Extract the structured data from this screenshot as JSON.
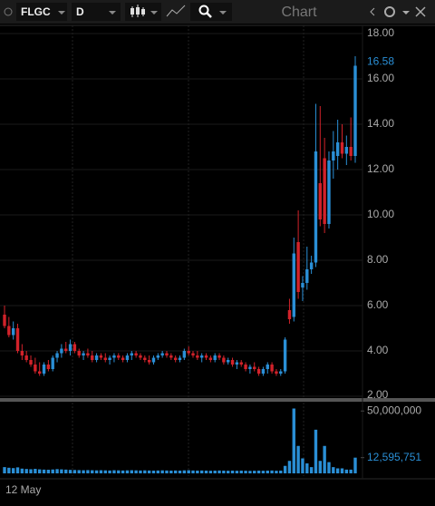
{
  "toolbar": {
    "symbol": "FLGC",
    "interval": "D",
    "title": "Chart"
  },
  "chart_data": {
    "type": "candlestick",
    "open": [
      5.6,
      5.1,
      4.7,
      5.0,
      4.0,
      3.8,
      3.6,
      3.4,
      3.1,
      3.0,
      3.4,
      3.2,
      3.7,
      3.9,
      4.1,
      4.0,
      4.3,
      4.0,
      3.8,
      3.9,
      3.8,
      3.6,
      3.8,
      3.7,
      3.6,
      3.7,
      3.8,
      3.7,
      3.6,
      3.8,
      3.9,
      3.8,
      3.7,
      3.6,
      3.5,
      3.7,
      3.8,
      3.9,
      3.8,
      3.7,
      3.6,
      3.7,
      4.0,
      3.9,
      3.8,
      3.7,
      3.8,
      3.7,
      3.6,
      3.8,
      3.7,
      3.5,
      3.6,
      3.4,
      3.5,
      3.4,
      3.2,
      3.3,
      3.2,
      3.0,
      3.2,
      3.4,
      3.1,
      3.0,
      3.1,
      5.8,
      5.5,
      8.8,
      6.8,
      7.0,
      7.6,
      7.9,
      11.4,
      12.5,
      9.6,
      12.4,
      12.6,
      13.2,
      12.7,
      13.0,
      12.6
    ],
    "high": [
      6.0,
      5.5,
      5.3,
      5.2,
      4.3,
      4.0,
      3.8,
      3.7,
      3.5,
      3.5,
      3.6,
      3.8,
      4.0,
      4.3,
      4.4,
      4.5,
      4.4,
      4.1,
      4.0,
      4.1,
      4.0,
      3.9,
      3.9,
      3.9,
      3.8,
      3.9,
      3.9,
      3.8,
      3.9,
      4.0,
      4.0,
      3.9,
      3.8,
      3.8,
      3.8,
      3.9,
      4.0,
      4.0,
      3.9,
      3.8,
      3.8,
      4.1,
      4.2,
      4.0,
      4.0,
      3.9,
      3.9,
      3.8,
      3.9,
      3.9,
      3.8,
      3.7,
      3.7,
      3.6,
      3.6,
      3.5,
      3.4,
      3.5,
      3.3,
      3.3,
      3.5,
      3.5,
      3.2,
      3.2,
      4.6,
      6.3,
      9.0,
      10.2,
      7.3,
      8.6,
      8.2,
      14.9,
      14.8,
      13.4,
      12.8,
      13.7,
      14.2,
      14.0,
      13.5,
      14.3,
      17.0
    ],
    "low": [
      5.0,
      4.6,
      4.5,
      3.9,
      3.6,
      3.5,
      3.3,
      3.0,
      2.9,
      2.9,
      3.1,
      3.1,
      3.5,
      3.7,
      3.9,
      3.8,
      3.9,
      3.7,
      3.6,
      3.7,
      3.5,
      3.5,
      3.6,
      3.5,
      3.4,
      3.5,
      3.6,
      3.5,
      3.5,
      3.6,
      3.7,
      3.6,
      3.5,
      3.4,
      3.4,
      3.6,
      3.7,
      3.7,
      3.6,
      3.5,
      3.5,
      3.6,
      3.8,
      3.7,
      3.6,
      3.5,
      3.6,
      3.5,
      3.5,
      3.6,
      3.4,
      3.4,
      3.3,
      3.2,
      3.3,
      3.1,
      3.0,
      3.1,
      2.9,
      2.9,
      3.0,
      3.0,
      2.9,
      2.9,
      3.0,
      5.2,
      5.3,
      6.3,
      6.2,
      6.7,
      7.4,
      7.7,
      9.5,
      9.2,
      9.4,
      11.6,
      12.0,
      12.5,
      12.2,
      12.4,
      12.3
    ],
    "close": [
      5.1,
      4.7,
      5.0,
      4.0,
      3.8,
      3.6,
      3.4,
      3.1,
      3.0,
      3.4,
      3.2,
      3.7,
      3.9,
      4.1,
      4.0,
      4.3,
      4.0,
      3.8,
      3.9,
      3.8,
      3.6,
      3.8,
      3.7,
      3.6,
      3.7,
      3.8,
      3.7,
      3.6,
      3.8,
      3.9,
      3.8,
      3.7,
      3.6,
      3.5,
      3.7,
      3.8,
      3.9,
      3.8,
      3.7,
      3.6,
      3.7,
      4.0,
      3.9,
      3.8,
      3.7,
      3.8,
      3.7,
      3.6,
      3.8,
      3.7,
      3.5,
      3.6,
      3.4,
      3.5,
      3.4,
      3.2,
      3.3,
      3.2,
      3.0,
      3.2,
      3.4,
      3.1,
      3.0,
      3.1,
      4.5,
      5.4,
      8.3,
      6.6,
      7.0,
      7.6,
      7.9,
      12.8,
      9.8,
      9.6,
      12.4,
      12.8,
      13.2,
      12.7,
      13.0,
      12.6,
      16.58
    ],
    "volume": [
      5000000,
      4500000,
      4200000,
      4800000,
      3800000,
      3500000,
      3300000,
      3600000,
      3200000,
      3000000,
      2900000,
      3100000,
      3400000,
      3200000,
      3000000,
      2800000,
      2700000,
      2600000,
      2500000,
      2600000,
      2500000,
      2400000,
      2500000,
      2400000,
      2300000,
      2500000,
      2400000,
      2300000,
      2400000,
      2500000,
      2400000,
      2300000,
      2400000,
      2300000,
      2200000,
      2300000,
      2400000,
      2300000,
      2200000,
      2300000,
      2200000,
      2400000,
      2500000,
      2300000,
      2200000,
      2300000,
      2200000,
      2100000,
      2200000,
      2300000,
      2200000,
      2100000,
      2200000,
      2100000,
      2200000,
      2100000,
      2000000,
      2100000,
      2200000,
      2100000,
      2200000,
      2300000,
      2100000,
      2200000,
      6000000,
      10000000,
      52000000,
      22000000,
      12000000,
      8000000,
      5000000,
      35000000,
      10000000,
      22000000,
      9000000,
      5000000,
      4000000,
      4000000,
      3000000,
      3000000,
      12595751
    ],
    "up_color": "#2a8fd6",
    "down_color": "#d2222a",
    "volume_color": "#2a8fd6",
    "ylim": [
      1.88,
      18.36
    ],
    "yticks": [
      {
        "value": 2,
        "label": "2.00"
      },
      {
        "value": 4,
        "label": "4.00"
      },
      {
        "value": 6,
        "label": "6.00"
      },
      {
        "value": 8,
        "label": "8.00"
      },
      {
        "value": 10,
        "label": "10.00"
      },
      {
        "value": 12,
        "label": "12.00"
      },
      {
        "value": 14,
        "label": "14.00"
      },
      {
        "value": 16,
        "label": "16.00"
      },
      {
        "value": 18,
        "label": "18.00"
      }
    ],
    "vlim": [
      0,
      56000000
    ],
    "vticks": [
      {
        "value": 50000000,
        "label": "50,000,000"
      },
      {
        "value": 12595751,
        "label": "12,595,751"
      }
    ],
    "x_label": "12 May",
    "grid": true
  }
}
